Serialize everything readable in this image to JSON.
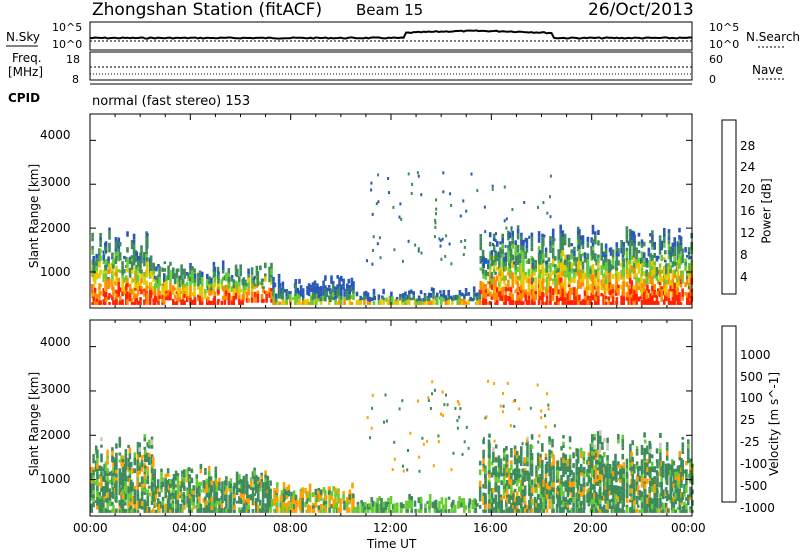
{
  "header": {
    "title": "Zhongshan Station (fitACF)",
    "beam": "Beam 15",
    "date": "26/Oct/2013"
  },
  "nsky_panel": {
    "left_label": "N.Sky",
    "right_label": "N.Search",
    "left_ticks": [
      "10^5",
      "10^0"
    ],
    "right_ticks": [
      "10^5",
      "10^0"
    ]
  },
  "freq_panel": {
    "left_label_line1": "Freq.",
    "left_label_line2": "[MHz]",
    "left_ticks": [
      "18",
      "8"
    ],
    "right_label": "Nave",
    "right_ticks": [
      "60",
      "0"
    ]
  },
  "cpid": {
    "label": "CPID",
    "mode": "normal (fast stereo) 153"
  },
  "x_axis": {
    "ticks": [
      "00:00",
      "04:00",
      "08:00",
      "12:00",
      "16:00",
      "20:00",
      "00:00"
    ],
    "label": "Time UT"
  },
  "chart_data": [
    {
      "type": "heatmap",
      "name": "Power",
      "ylabel": "Slant Range [km]",
      "yticks": [
        "4000",
        "3000",
        "2000",
        "1000"
      ],
      "ylim": [
        180,
        4600
      ],
      "xlim_hours": [
        0,
        24
      ],
      "colorbar": {
        "label": "Power [dB]",
        "ticks": [
          "28",
          "24",
          "20",
          "16",
          "12",
          "8",
          "4"
        ],
        "colors": [
          "#0018ff",
          "#2a59b5",
          "#3d8a5a",
          "#66cc33",
          "#e8c800",
          "#ff8c00",
          "#ff2200",
          "#ff0000"
        ]
      },
      "regions": [
        {
          "t0": 0.0,
          "t1": 2.5,
          "r0": 250,
          "r1": 2000,
          "level": "high"
        },
        {
          "t0": 2.5,
          "t1": 6.2,
          "r0": 250,
          "r1": 1300,
          "level": "high"
        },
        {
          "t0": 6.2,
          "t1": 7.2,
          "r0": 300,
          "r1": 1200,
          "level": "high"
        },
        {
          "t0": 7.2,
          "t1": 10.5,
          "r0": 250,
          "r1": 900,
          "level": "low"
        },
        {
          "t0": 10.5,
          "t1": 15.5,
          "r0": 250,
          "r1": 600,
          "level": "low"
        },
        {
          "t0": 15.5,
          "t1": 24.0,
          "r0": 250,
          "r1": 2000,
          "level": "high"
        }
      ]
    },
    {
      "type": "heatmap",
      "name": "Velocity",
      "ylabel": "Slant Range [km]",
      "yticks": [
        "4000",
        "3000",
        "2000",
        "1000"
      ],
      "ylim": [
        180,
        4600
      ],
      "xlim_hours": [
        0,
        24
      ],
      "colorbar": {
        "label": "Velocity [m s^-1]",
        "ticks": [
          "1000",
          "500",
          "100",
          "25",
          "-25",
          "-100",
          "-500",
          "-1000"
        ],
        "colors": [
          "#1e3cc8",
          "#2a59b5",
          "#3d8a5a",
          "#66cc33",
          "#c8c8c0",
          "#ffa000",
          "#ff6a00",
          "#ff0000"
        ]
      },
      "regions": [
        {
          "t0": 0.0,
          "t1": 2.5,
          "r0": 250,
          "r1": 2000,
          "level": "mixed"
        },
        {
          "t0": 2.5,
          "t1": 7.2,
          "r0": 250,
          "r1": 1300,
          "level": "mixed"
        },
        {
          "t0": 7.2,
          "t1": 10.5,
          "r0": 250,
          "r1": 900,
          "level": "neg"
        },
        {
          "t0": 10.5,
          "t1": 15.5,
          "r0": 250,
          "r1": 600,
          "level": "pos"
        },
        {
          "t0": 15.5,
          "t1": 24.0,
          "r0": 250,
          "r1": 2000,
          "level": "mixed"
        }
      ]
    }
  ],
  "colors": {
    "power_high": "#ff2200",
    "power_mid": "#e8c800",
    "power_low": "#3d8a5a",
    "velocity_main": "#3d8a5a",
    "velocity_neg": "#ff8c00",
    "velocity_grey": "#c8c8c0"
  }
}
